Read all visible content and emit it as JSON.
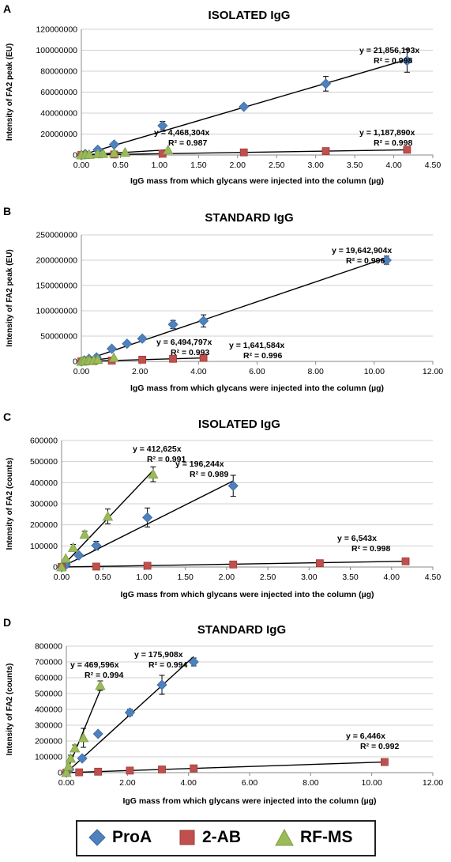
{
  "legend": [
    {
      "name": "ProA",
      "color": "#4f81bd",
      "marker": "diamond"
    },
    {
      "name": "2-AB",
      "color": "#c0504d",
      "marker": "square"
    },
    {
      "name": "RF-MS",
      "color": "#9bbb59",
      "marker": "triangle"
    }
  ],
  "chart_data": [
    {
      "panel": "A",
      "type": "scatter",
      "title": "ISOLATED IgG",
      "xlabel": "IgG mass from which glycans were injected into the column (µg)",
      "ylabel": "Intensity of FA2 peak (EU)",
      "xlim": [
        0,
        4.5
      ],
      "ylim": [
        0,
        120000000
      ],
      "xticks": [
        "0.00",
        "0.50",
        "1.00",
        "1.50",
        "2.00",
        "2.50",
        "3.00",
        "3.50",
        "4.00",
        "4.50"
      ],
      "yticks": [
        "0",
        "20000000",
        "40000000",
        "60000000",
        "80000000",
        "100000000",
        "120000000"
      ],
      "grid": "horizontal",
      "series": [
        {
          "name": "ProA",
          "x": [
            0.0,
            0.05,
            0.21,
            0.42,
            1.04,
            2.08,
            3.13,
            4.17
          ],
          "y": [
            0,
            1000000,
            5000000,
            10000000,
            28000000,
            46000000,
            68000000,
            90000000
          ],
          "err": [
            0,
            0,
            0,
            0,
            4000000,
            0,
            7000000,
            11000000
          ],
          "slope": 21856193,
          "fit_to": 4.17
        },
        {
          "name": "2-AB",
          "x": [
            0.0,
            0.42,
            1.04,
            2.08,
            3.13,
            4.17
          ],
          "y": [
            0,
            500000,
            1200000,
            2500000,
            3700000,
            5000000
          ],
          "err": [
            0,
            0,
            0,
            0,
            0,
            0
          ],
          "slope": 1187890,
          "fit_to": 4.17
        },
        {
          "name": "RF-MS",
          "x": [
            0.0,
            0.05,
            0.1,
            0.21,
            0.28,
            0.42,
            0.56,
            1.11
          ],
          "y": [
            0,
            300000,
            500000,
            1000000,
            1300000,
            1900000,
            2500000,
            4700000
          ],
          "err": [
            0,
            0,
            0,
            0,
            0,
            0,
            0,
            0
          ],
          "slope": 4468304,
          "fit_to": 1.11
        }
      ],
      "annotations": [
        {
          "series": "ProA",
          "eq": "y = 21,856,193x",
          "r2": "R² = 0.998"
        },
        {
          "series": "RF-MS",
          "eq": "y = 4,468,304x",
          "r2": "R² = 0.987"
        },
        {
          "series": "2-AB",
          "eq": "y = 1,187,890x",
          "r2": "R² = 0.998"
        }
      ]
    },
    {
      "panel": "B",
      "type": "scatter",
      "title": "STANDARD IgG",
      "xlabel": "IgG mass from which glycans were injected into the column (µg)",
      "ylabel": "Intensity of FA2 peak (EU)",
      "xlim": [
        0,
        12
      ],
      "ylim": [
        0,
        250000000
      ],
      "xticks": [
        "0.00",
        "2.00",
        "4.00",
        "6.00",
        "8.00",
        "10.00",
        "12.00"
      ],
      "yticks": [
        "0",
        "50000000",
        "100000000",
        "150000000",
        "200000000",
        "250000000"
      ],
      "grid": "horizontal",
      "series": [
        {
          "name": "ProA",
          "x": [
            0.0,
            0.1,
            0.26,
            0.52,
            1.04,
            1.56,
            2.08,
            3.13,
            4.17,
            10.42
          ],
          "y": [
            0,
            2000000,
            5000000,
            8000000,
            25000000,
            35000000,
            45000000,
            73000000,
            80000000,
            200000000
          ],
          "err": [
            0,
            0,
            0,
            0,
            0,
            0,
            0,
            8000000,
            12000000,
            8000000
          ],
          "slope": 19642904,
          "fit_to": 10.42
        },
        {
          "name": "2-AB",
          "x": [
            0.0,
            0.42,
            1.04,
            2.08,
            3.13,
            4.17
          ],
          "y": [
            0,
            700000,
            1700000,
            3400000,
            5100000,
            6800000
          ],
          "err": [
            0,
            0,
            0,
            0,
            0,
            0
          ],
          "slope": 1641584,
          "fit_to": 4.17
        },
        {
          "name": "RF-MS",
          "x": [
            0.0,
            0.05,
            0.1,
            0.21,
            0.28,
            0.42,
            0.56,
            1.11
          ],
          "y": [
            0,
            300000,
            700000,
            1400000,
            1800000,
            2700000,
            3600000,
            7200000
          ],
          "err": [
            0,
            0,
            0,
            0,
            0,
            0,
            0,
            0
          ],
          "slope": 6494797,
          "fit_to": 1.11
        }
      ],
      "annotations": [
        {
          "series": "ProA",
          "eq": "y = 19,642,904x",
          "r2": "R² = 0.996"
        },
        {
          "series": "RF-MS",
          "eq": "y = 6,494,797x",
          "r2": "R² = 0.993"
        },
        {
          "series": "2-AB",
          "eq": "y = 1,641,584x",
          "r2": "R² = 0.996"
        }
      ]
    },
    {
      "panel": "C",
      "type": "scatter",
      "title": "ISOLATED IgG",
      "xlabel": "IgG mass from which glycans were injected into the column (µg)",
      "ylabel": "Intensity of FA2 (counts)",
      "xlim": [
        0,
        4.5
      ],
      "ylim": [
        0,
        600000
      ],
      "xticks": [
        "0.00",
        "0.50",
        "1.00",
        "1.50",
        "2.00",
        "2.50",
        "3.00",
        "3.50",
        "4.00",
        "4.50"
      ],
      "yticks": [
        "0",
        "100000",
        "200000",
        "300000",
        "400000",
        "500000",
        "600000"
      ],
      "grid": "horizontal",
      "series": [
        {
          "name": "ProA",
          "x": [
            0.0,
            0.05,
            0.21,
            0.42,
            1.04,
            2.08
          ],
          "y": [
            0,
            10000,
            55000,
            102000,
            235000,
            385000
          ],
          "err": [
            0,
            0,
            0,
            20000,
            45000,
            50000
          ],
          "slope": 196244,
          "fit_to": 2.08
        },
        {
          "name": "2-AB",
          "x": [
            0.0,
            0.42,
            1.04,
            2.08,
            3.13,
            4.17
          ],
          "y": [
            0,
            2000,
            6000,
            12000,
            18000,
            27000
          ],
          "err": [
            0,
            0,
            0,
            0,
            0,
            0
          ],
          "slope": 6543,
          "fit_to": 4.17
        },
        {
          "name": "RF-MS",
          "x": [
            0.0,
            0.05,
            0.14,
            0.28,
            0.56,
            1.11
          ],
          "y": [
            0,
            40000,
            92000,
            155000,
            240000,
            440000
          ],
          "err": [
            0,
            0,
            15000,
            15000,
            35000,
            35000
          ],
          "slope": 412625,
          "fit_to": 1.11
        }
      ],
      "annotations": [
        {
          "series": "RF-MS",
          "eq": "y = 412,625x",
          "r2": "R² = 0.991"
        },
        {
          "series": "ProA",
          "eq": "y = 196,244x",
          "r2": "R² = 0.989"
        },
        {
          "series": "2-AB",
          "eq": "y = 6,543x",
          "r2": "R² = 0.998"
        }
      ]
    },
    {
      "panel": "D",
      "type": "scatter",
      "title": "STANDARD IgG",
      "xlabel": "IgG mass from which glycans were injected into the column  (µg)",
      "ylabel": "Intensity of FA2 (counts)",
      "xlim": [
        0,
        12
      ],
      "ylim": [
        0,
        800000
      ],
      "xticks": [
        "0.00",
        "2.00",
        "4.00",
        "6.00",
        "8.00",
        "10.00",
        "12.00"
      ],
      "yticks": [
        "0",
        "100000",
        "200000",
        "300000",
        "400000",
        "500000",
        "600000",
        "700000",
        "800000"
      ],
      "grid": "horizontal",
      "series": [
        {
          "name": "ProA",
          "x": [
            0.0,
            0.1,
            0.52,
            1.04,
            2.08,
            3.13,
            4.17
          ],
          "y": [
            0,
            20000,
            90000,
            245000,
            380000,
            555000,
            700000
          ],
          "err": [
            0,
            0,
            0,
            0,
            20000,
            60000,
            25000
          ],
          "slope": 175908,
          "fit_to": 4.17
        },
        {
          "name": "2-AB",
          "x": [
            0.0,
            0.42,
            1.04,
            2.08,
            3.13,
            4.17,
            10.42
          ],
          "y": [
            0,
            2000,
            6000,
            13000,
            20000,
            27000,
            67000
          ],
          "err": [
            0,
            0,
            0,
            0,
            0,
            0,
            0
          ],
          "slope": 6446,
          "fit_to": 10.42
        },
        {
          "name": "RF-MS",
          "x": [
            0.0,
            0.07,
            0.14,
            0.28,
            0.56,
            1.11
          ],
          "y": [
            0,
            40000,
            90000,
            155000,
            220000,
            550000
          ],
          "err": [
            0,
            0,
            20000,
            20000,
            60000,
            30000
          ],
          "slope": 469596,
          "fit_to": 1.11
        }
      ],
      "annotations": [
        {
          "series": "RF-MS",
          "eq": "y = 469,596x",
          "r2": "R² = 0.994"
        },
        {
          "series": "ProA",
          "eq": "y = 175,908x",
          "r2": "R² = 0.994"
        },
        {
          "series": "2-AB",
          "eq": "y = 6,446x",
          "r2": "R² = 0.992"
        }
      ]
    }
  ]
}
